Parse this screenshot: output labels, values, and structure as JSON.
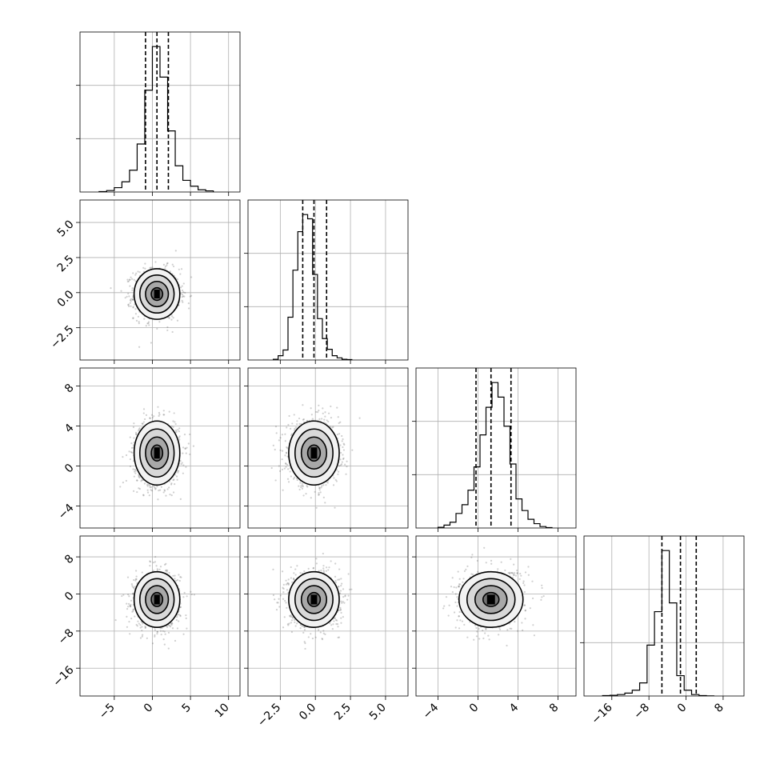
{
  "chart_data": {
    "type": "corner",
    "parameters": 4,
    "grid": true,
    "colors": {
      "line": "#000000",
      "grid": "#b0b0b0",
      "points": "#555555"
    },
    "ranges": [
      [
        -9.5,
        11.5
      ],
      [
        -4.8,
        6.6
      ],
      [
        -6.2,
        9.8
      ],
      [
        -22,
        12.5
      ]
    ],
    "ticks": [
      {
        "values": [
          -5,
          0,
          5,
          10
        ],
        "labels": [
          "−5",
          "0",
          "5",
          "10"
        ]
      },
      {
        "values": [
          -2.5,
          0.0,
          2.5,
          5.0
        ],
        "labels": [
          "−2.5",
          "0.0",
          "2.5",
          "5.0"
        ]
      },
      {
        "values": [
          -4,
          0,
          4,
          8
        ],
        "labels": [
          "−4",
          "0",
          "4",
          "8"
        ]
      },
      {
        "values": [
          -16,
          -8,
          0,
          8
        ],
        "labels": [
          "−16",
          "−8",
          "0",
          "8"
        ]
      }
    ],
    "quantiles": [
      [
        -0.9,
        0.6,
        2.1
      ],
      [
        -0.9,
        -0.1,
        0.8
      ],
      [
        -0.2,
        1.3,
        3.3
      ],
      [
        -5.2,
        -1.2,
        2.2
      ]
    ],
    "histograms": [
      {
        "bin_start": -7.0,
        "bin_width": 1.0,
        "counts": [
          0.3,
          1,
          3,
          7,
          15,
          33,
          70,
          100,
          79,
          42,
          18,
          8,
          4,
          1.5,
          0.8
        ]
      },
      {
        "bin_start": -3.0,
        "bin_width": 0.35,
        "counts": [
          0.5,
          3,
          7,
          30,
          63,
          90,
          102,
          99,
          60,
          29,
          15,
          7.5,
          3,
          1.5,
          0.5,
          0.3
        ]
      },
      {
        "bin_start": -4.0,
        "bin_width": 0.6,
        "counts": [
          0.5,
          2,
          4,
          10,
          16,
          26,
          42,
          64,
          83,
          100,
          90,
          70,
          44,
          20,
          12,
          6,
          3,
          1,
          0.3
        ]
      },
      {
        "bin_start": -18.0,
        "bin_width": 1.6,
        "counts": [
          0.3,
          0.5,
          1,
          2,
          4,
          9,
          35,
          58,
          100,
          64,
          14,
          4,
          1,
          0.3,
          0.1
        ]
      }
    ],
    "correlations": [
      [
        1,
        0,
        0,
        0
      ],
      [
        0,
        1,
        0,
        0
      ],
      [
        0,
        0,
        1,
        0.1
      ],
      [
        0,
        0,
        0.1,
        1
      ]
    ],
    "spreads": [
      1.5,
      0.9,
      1.6,
      3.0
    ]
  }
}
